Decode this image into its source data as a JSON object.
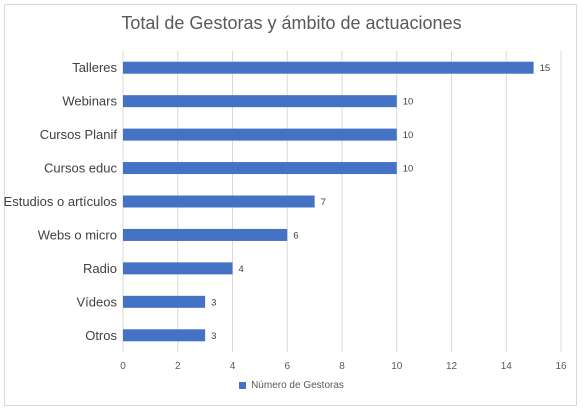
{
  "chart_data": {
    "type": "bar",
    "orientation": "horizontal",
    "title": "Total de Gestoras y ámbito de actuaciones",
    "categories": [
      "Talleres",
      "Webinars",
      "Cursos Planif",
      "Cursos educ",
      "Estudios o artículos",
      "Webs o micro",
      "Radio",
      "Vídeos",
      "Otros"
    ],
    "series": [
      {
        "name": "Número de Gestoras",
        "values": [
          15,
          10,
          10,
          10,
          7,
          6,
          4,
          3,
          3
        ],
        "color": "#4472c4"
      }
    ],
    "xlim": [
      0,
      16
    ],
    "xticks": [
      0,
      2,
      4,
      6,
      8,
      10,
      12,
      14,
      16
    ],
    "grid": true,
    "data_labels": true,
    "legend_position": "bottom"
  }
}
